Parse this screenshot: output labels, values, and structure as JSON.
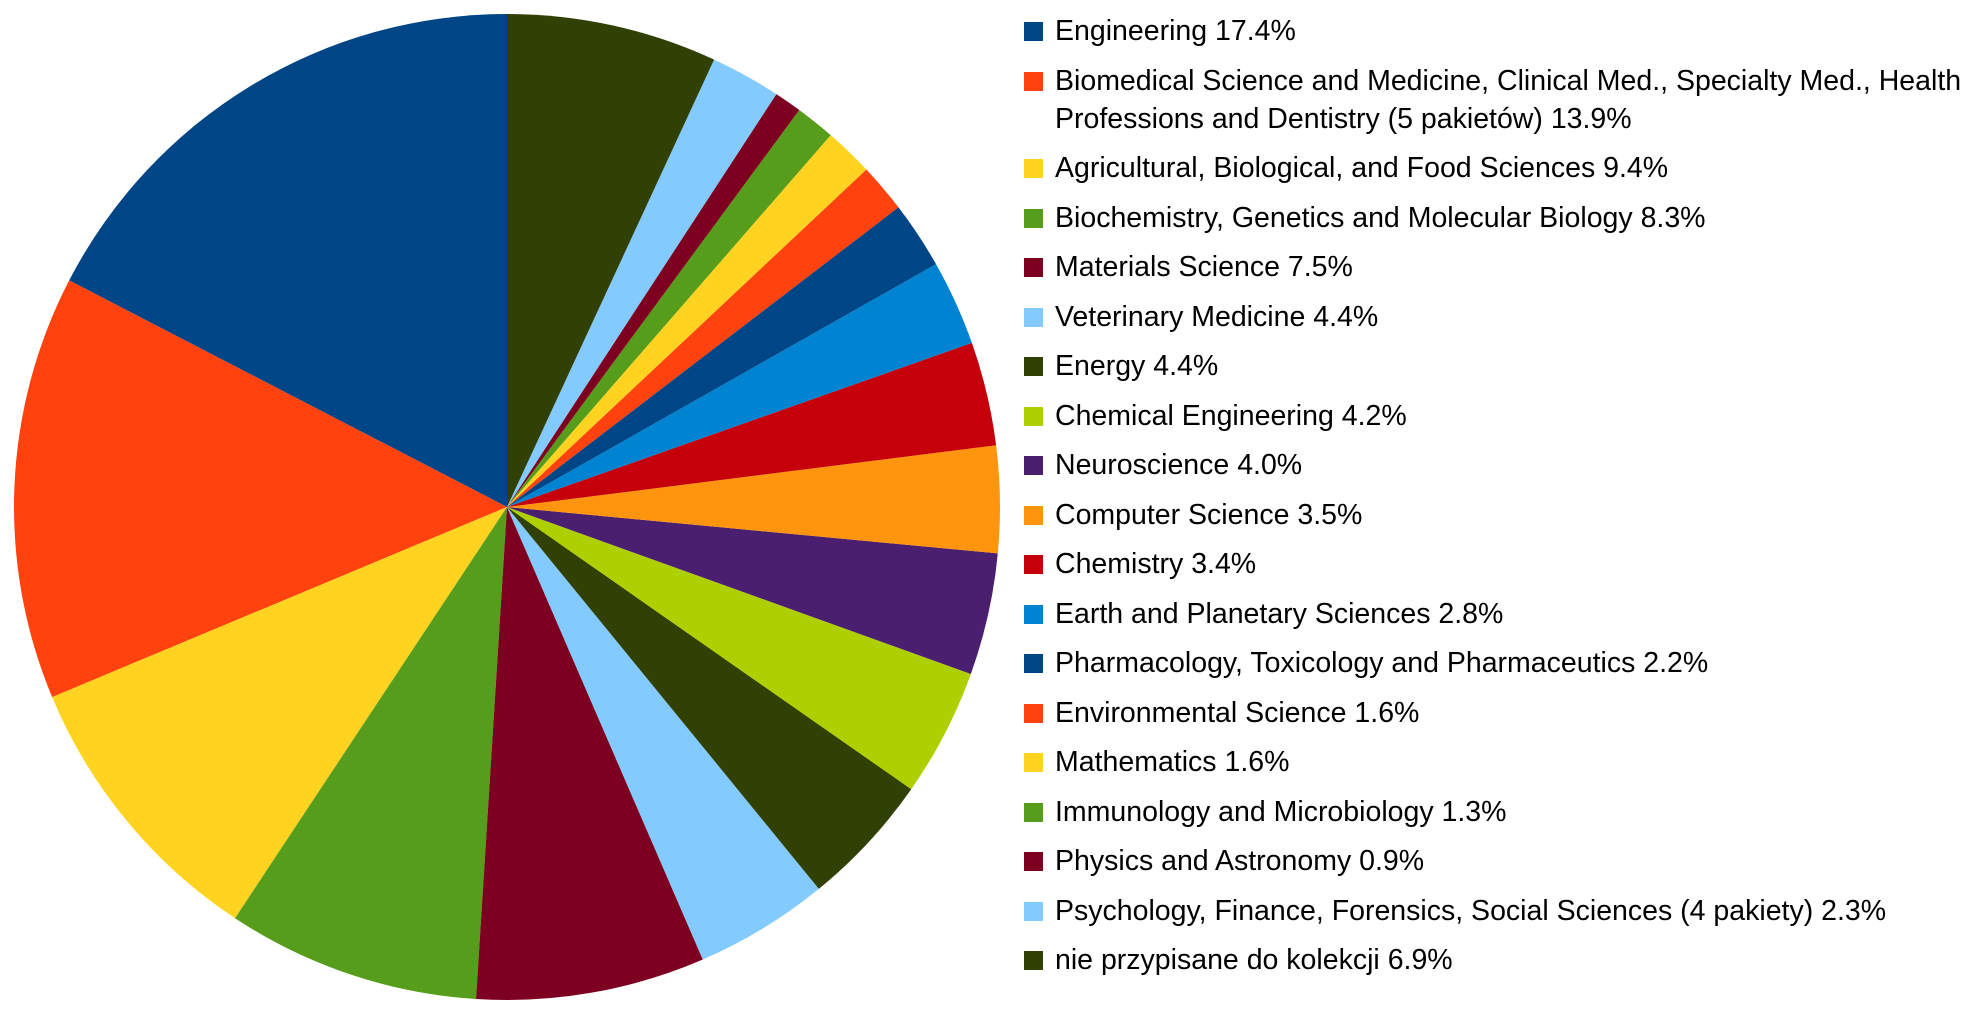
{
  "chart_data": {
    "type": "pie",
    "categories": [
      "Engineering",
      "Biomedical Science and Medicine, Clinical Med., Specialty Med., Health Professions and Dentistry (5 pakietów)",
      "Agricultural, Biological, and Food Sciences",
      "Biochemistry, Genetics and Molecular Biology",
      "Materials Science",
      "Veterinary Medicine",
      "Energy",
      "Chemical Engineering",
      "Neuroscience",
      "Computer Science",
      "Chemistry",
      "Earth and Planetary Sciences",
      "Pharmacology, Toxicology and Pharmaceutics",
      "Environmental Science",
      "Mathematics",
      "Immunology and Microbiology",
      "Physics and Astronomy",
      "Psychology, Finance, Forensics, Social Sciences (4 pakiety)",
      "nie przypisane do kolekcji"
    ],
    "values": [
      17.4,
      13.9,
      9.4,
      8.3,
      7.5,
      4.4,
      4.4,
      4.2,
      4.0,
      3.5,
      3.4,
      2.8,
      2.2,
      1.6,
      1.6,
      1.3,
      0.9,
      2.3,
      6.9
    ],
    "value_labels": [
      "17.4%",
      "13.9%",
      "9.4%",
      "8.3%",
      "7.5%",
      "4.4%",
      "4.4%",
      "4.2%",
      "4.0%",
      "3.5%",
      "3.4%",
      "2.8%",
      "2.2%",
      "1.6%",
      "1.6%",
      "1.3%",
      "0.9%",
      "2.3%",
      "6.9%"
    ],
    "colors": [
      "#004586",
      "#ff420e",
      "#ffd320",
      "#579d1c",
      "#7e0021",
      "#83caff",
      "#314004",
      "#aecf00",
      "#4b1f6f",
      "#ff950e",
      "#c5000b",
      "#0084d1",
      "#004586",
      "#ff420e",
      "#ffd320",
      "#579d1c",
      "#7e0021",
      "#83caff",
      "#314004"
    ],
    "start_angle": "top",
    "direction": "counterclockwise",
    "legend": "right"
  }
}
